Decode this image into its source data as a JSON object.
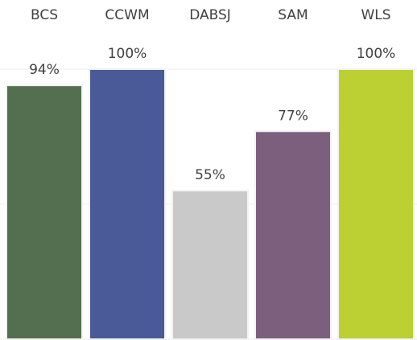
{
  "chart_data": {
    "type": "bar",
    "categories": [
      "BCS",
      "CCWM",
      "DABSJ",
      "SAM",
      "WLS"
    ],
    "values": [
      94,
      100,
      55,
      77,
      100
    ],
    "value_labels": [
      "94%",
      "100%",
      "55%",
      "77%",
      "100%"
    ],
    "colors": [
      "#546f4f",
      "#4a5a99",
      "#c9c9c9",
      "#7b5f7c",
      "#bccf33"
    ],
    "ylim": [
      0,
      100
    ],
    "yticks": [
      0,
      50,
      100
    ],
    "grid": true
  }
}
